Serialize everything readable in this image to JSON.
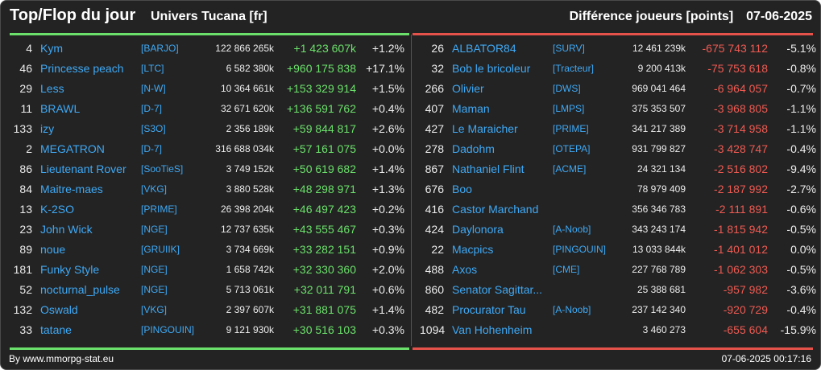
{
  "header": {
    "title": "Top/Flop du jour",
    "universe": "Univers Tucana [fr]",
    "metric": "Différence joueurs [points]",
    "date": "07-06-2025"
  },
  "colors": {
    "background": "#232323",
    "link": "#3fa9f5",
    "positive": "#6be16b",
    "negative": "#ee5a52",
    "top_bar": "#6be16b",
    "flop_bar": "#e4524a"
  },
  "top": [
    {
      "rank": "4",
      "name": "Kym",
      "guild": "[BARJO]",
      "score": "122 866 265k",
      "diff": "+1 423 607k",
      "pct": "+1.2%"
    },
    {
      "rank": "46",
      "name": "Princesse peach",
      "guild": "[LTC]",
      "score": "6 582 380k",
      "diff": "+960 175 838",
      "pct": "+17.1%"
    },
    {
      "rank": "29",
      "name": "Less",
      "guild": "[N-W]",
      "score": "10 364 661k",
      "diff": "+153 329 914",
      "pct": "+1.5%"
    },
    {
      "rank": "11",
      "name": "BRAWL",
      "guild": "[D-7]",
      "score": "32 671 620k",
      "diff": "+136 591 762",
      "pct": "+0.4%"
    },
    {
      "rank": "133",
      "name": "izy",
      "guild": "[S3O]",
      "score": "2 356 189k",
      "diff": "+59 844 817",
      "pct": "+2.6%"
    },
    {
      "rank": "2",
      "name": "MEGATRON",
      "guild": "[D-7]",
      "score": "316 688 034k",
      "diff": "+57 161 075",
      "pct": "+0.0%"
    },
    {
      "rank": "86",
      "name": "Lieutenant Rover",
      "guild": "[SooTieS]",
      "score": "3 749 152k",
      "diff": "+50 619 682",
      "pct": "+1.4%"
    },
    {
      "rank": "84",
      "name": "Maitre-maes",
      "guild": "[VKG]",
      "score": "3 880 528k",
      "diff": "+48 298 971",
      "pct": "+1.3%"
    },
    {
      "rank": "13",
      "name": "K-2SO",
      "guild": "[PRIME]",
      "score": "26 398 204k",
      "diff": "+46 497 423",
      "pct": "+0.2%"
    },
    {
      "rank": "23",
      "name": "John Wick",
      "guild": "[NGE]",
      "score": "12 737 635k",
      "diff": "+43 555 467",
      "pct": "+0.3%"
    },
    {
      "rank": "89",
      "name": "noue",
      "guild": "[GRUIIK]",
      "score": "3 734 669k",
      "diff": "+33 282 151",
      "pct": "+0.9%"
    },
    {
      "rank": "181",
      "name": "Funky Style",
      "guild": "[NGE]",
      "score": "1 658 742k",
      "diff": "+32 330 360",
      "pct": "+2.0%"
    },
    {
      "rank": "52",
      "name": "nocturnal_pulse",
      "guild": "[NGE]",
      "score": "5 713 061k",
      "diff": "+32 011 791",
      "pct": "+0.6%"
    },
    {
      "rank": "132",
      "name": "Oswald",
      "guild": "[VKG]",
      "score": "2 397 607k",
      "diff": "+31 881 075",
      "pct": "+1.4%"
    },
    {
      "rank": "33",
      "name": "tatane",
      "guild": "[PINGOUIN]",
      "score": "9 121 930k",
      "diff": "+30 516 103",
      "pct": "+0.3%"
    }
  ],
  "flop": [
    {
      "rank": "26",
      "name": "ALBATOR84",
      "guild": "[SURV]",
      "score": "12 461 239k",
      "diff": "-675 743 112",
      "pct": "-5.1%"
    },
    {
      "rank": "32",
      "name": "Bob le bricoleur",
      "guild": "[Tracteur]",
      "score": "9 200 413k",
      "diff": "-75 753 618",
      "pct": "-0.8%"
    },
    {
      "rank": "266",
      "name": "Olivier",
      "guild": "[DWS]",
      "score": "969 041 464",
      "diff": "-6 964 057",
      "pct": "-0.7%"
    },
    {
      "rank": "407",
      "name": "Maman",
      "guild": "[LMPS]",
      "score": "375 353 507",
      "diff": "-3 968 805",
      "pct": "-1.1%"
    },
    {
      "rank": "427",
      "name": "Le Maraicher",
      "guild": "[PRIME]",
      "score": "341 217 389",
      "diff": "-3 714 958",
      "pct": "-1.1%"
    },
    {
      "rank": "278",
      "name": "Dadohm",
      "guild": "[OTEPA]",
      "score": "931 799 827",
      "diff": "-3 428 747",
      "pct": "-0.4%"
    },
    {
      "rank": "867",
      "name": "Nathaniel Flint",
      "guild": "[ACME]",
      "score": "24 321 134",
      "diff": "-2 516 802",
      "pct": "-9.4%"
    },
    {
      "rank": "676",
      "name": "Boo",
      "guild": "",
      "score": "78 979 409",
      "diff": "-2 187 992",
      "pct": "-2.7%"
    },
    {
      "rank": "416",
      "name": "Castor Marchand",
      "guild": "",
      "score": "356 346 783",
      "diff": "-2 111 891",
      "pct": "-0.6%"
    },
    {
      "rank": "424",
      "name": "Daylonora",
      "guild": "[A-Noob]",
      "score": "343 243 174",
      "diff": "-1 815 942",
      "pct": "-0.5%"
    },
    {
      "rank": "22",
      "name": "Macpics",
      "guild": "[PINGOUIN]",
      "score": "13 033 844k",
      "diff": "-1 401 012",
      "pct": "0.0%"
    },
    {
      "rank": "488",
      "name": "Axos",
      "guild": "[CME]",
      "score": "227 768 789",
      "diff": "-1 062 303",
      "pct": "-0.5%"
    },
    {
      "rank": "860",
      "name": "Senator Sagittar...",
      "guild": "",
      "score": "25 388 681",
      "diff": "-957 982",
      "pct": "-3.6%"
    },
    {
      "rank": "482",
      "name": "Procurator Tau",
      "guild": "[A-Noob]",
      "score": "237 142 340",
      "diff": "-920 729",
      "pct": "-0.4%"
    },
    {
      "rank": "1094",
      "name": "Van Hohenheim",
      "guild": "",
      "score": "3 460 273",
      "diff": "-655 604",
      "pct": "-15.9%"
    }
  ],
  "footer": {
    "credit": "By www.mmorpg-stat.eu",
    "timestamp": "07-06-2025 00:17:16"
  }
}
